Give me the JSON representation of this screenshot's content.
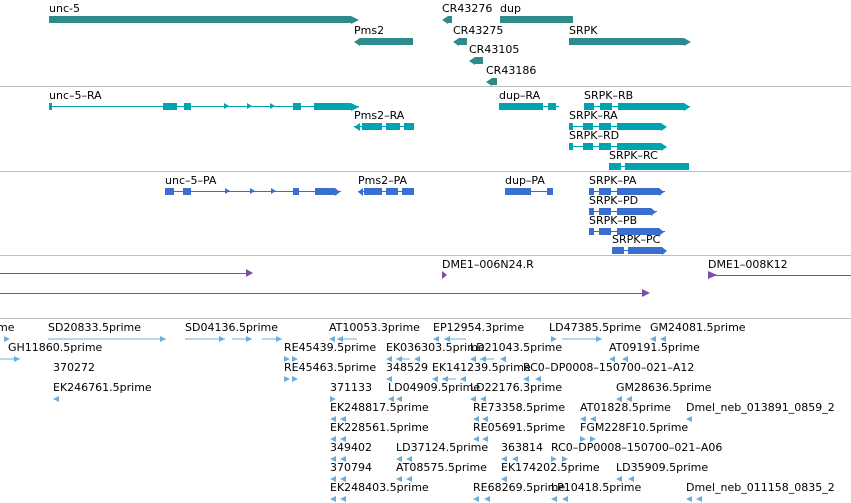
{
  "colors": {
    "gene": "#2e8b8b",
    "transcript": "#00a3b0",
    "protein": "#3a6fd0",
    "clone": "#7a4fa8",
    "est": "#6aaedc",
    "separator": "#c0c0c0"
  },
  "tracks": {
    "genes": {
      "features": [
        {
          "id": "unc-5",
          "label": "unc-5"
        },
        {
          "id": "CR43276",
          "label": "CR43276"
        },
        {
          "id": "dup",
          "label": "dup"
        },
        {
          "id": "Pms2",
          "label": "Pms2"
        },
        {
          "id": "CR43275",
          "label": "CR43275"
        },
        {
          "id": "SRPK",
          "label": "SRPK"
        },
        {
          "id": "CR43105",
          "label": "CR43105"
        },
        {
          "id": "CR43186",
          "label": "CR43186"
        }
      ]
    },
    "transcripts": {
      "features": [
        {
          "id": "unc-5-RA",
          "label": "unc–5–RA"
        },
        {
          "id": "dup-RA",
          "label": "dup–RA"
        },
        {
          "id": "SRPK-RB",
          "label": "SRPK–RB"
        },
        {
          "id": "Pms2-RA",
          "label": "Pms2–RA"
        },
        {
          "id": "SRPK-RA",
          "label": "SRPK–RA"
        },
        {
          "id": "SRPK-RD",
          "label": "SRPK–RD"
        },
        {
          "id": "SRPK-RC",
          "label": "SRPK–RC"
        }
      ]
    },
    "proteins": {
      "features": [
        {
          "id": "unc-5-PA",
          "label": "unc–5–PA"
        },
        {
          "id": "Pms2-PA",
          "label": "Pms2–PA"
        },
        {
          "id": "dup-PA",
          "label": "dup–PA"
        },
        {
          "id": "SRPK-PA",
          "label": "SRPK–PA"
        },
        {
          "id": "SRPK-PD",
          "label": "SRPK–PD"
        },
        {
          "id": "SRPK-PB",
          "label": "SRPK–PB"
        },
        {
          "id": "SRPK-PC",
          "label": "SRPK–PC"
        }
      ]
    },
    "clones": {
      "features": [
        {
          "id": "DME1-006N24.R",
          "label": "DME1–006N24.R"
        },
        {
          "id": "DME1-008K12",
          "label": "DME1–008K12"
        }
      ]
    },
    "ests": {
      "features": [
        {
          "id": "e1",
          "label": "ime"
        },
        {
          "id": "e2",
          "label": "SD20833.5prime"
        },
        {
          "id": "e3",
          "label": "SD04136.5prime"
        },
        {
          "id": "e4",
          "label": "AT10053.3prime"
        },
        {
          "id": "e5",
          "label": "EP12954.3prime"
        },
        {
          "id": "e6",
          "label": "LD47385.5prime"
        },
        {
          "id": "e7",
          "label": "GM24081.5prime"
        },
        {
          "id": "e8",
          "label": "GH11860.5prime"
        },
        {
          "id": "e9",
          "label": "RE45439.5prime"
        },
        {
          "id": "e10",
          "label": "EK036303.5prime"
        },
        {
          "id": "e11",
          "label": "LD21043.5prime"
        },
        {
          "id": "e12",
          "label": "AT09191.5prime"
        },
        {
          "id": "e13",
          "label": "370272"
        },
        {
          "id": "e14",
          "label": "RE45463.5prime"
        },
        {
          "id": "e15",
          "label": "348529"
        },
        {
          "id": "e16",
          "label": "EK141239.5prime"
        },
        {
          "id": "e17",
          "label": "RC0–DP0008–150700–021–A12"
        },
        {
          "id": "e18",
          "label": "EK246761.5prime"
        },
        {
          "id": "e19",
          "label": "371133"
        },
        {
          "id": "e20",
          "label": "LD04909.5prime"
        },
        {
          "id": "e21",
          "label": "LD22176.3prime"
        },
        {
          "id": "e22",
          "label": "GM28636.5prime"
        },
        {
          "id": "e23",
          "label": "EK248817.5prime"
        },
        {
          "id": "e24",
          "label": "RE73358.5prime"
        },
        {
          "id": "e25",
          "label": "AT01828.5prime"
        },
        {
          "id": "e26",
          "label": "Dmel_neb_013891_0859_2"
        },
        {
          "id": "e27",
          "label": "EK228561.5prime"
        },
        {
          "id": "e28",
          "label": "RE05691.5prime"
        },
        {
          "id": "e29",
          "label": "FGM228F10.5prime"
        },
        {
          "id": "e30",
          "label": "349402"
        },
        {
          "id": "e31",
          "label": "LD37124.5prime"
        },
        {
          "id": "e32",
          "label": "363814"
        },
        {
          "id": "e33",
          "label": "RC0–DP0008–150700–021–A06"
        },
        {
          "id": "e34",
          "label": "370794"
        },
        {
          "id": "e35",
          "label": "AT08575.5prime"
        },
        {
          "id": "e36",
          "label": "EK174202.5prime"
        },
        {
          "id": "e37",
          "label": "LD35909.5prime"
        },
        {
          "id": "e38",
          "label": "EK248403.5prime"
        },
        {
          "id": "e39",
          "label": "RE68269.5prime"
        },
        {
          "id": "e40",
          "label": "LP10418.5prime"
        },
        {
          "id": "e41",
          "label": "Dmel_neb_011158_0835_2"
        }
      ]
    }
  }
}
